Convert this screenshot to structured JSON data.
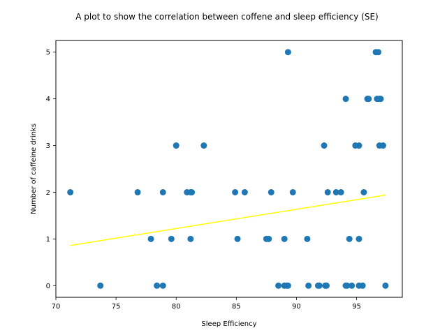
{
  "chart_data": {
    "type": "scatter",
    "title": "A plot to show the correlation between coffene and sleep efficiency (SE)",
    "xlabel": "Sleep Efficiency",
    "ylabel": "Number of caffeine drinks",
    "xlim": [
      70,
      98.8
    ],
    "ylim": [
      -0.25,
      5.25
    ],
    "xticks": [
      70,
      75,
      80,
      85,
      90,
      95
    ],
    "yticks": [
      0,
      1,
      2,
      3,
      4,
      5
    ],
    "grid": false,
    "colors": {
      "points": "#1f77b4",
      "trend": "#ffff00"
    },
    "points": [
      {
        "x": 71.2,
        "y": 2
      },
      {
        "x": 73.7,
        "y": 0
      },
      {
        "x": 76.8,
        "y": 2
      },
      {
        "x": 77.9,
        "y": 1
      },
      {
        "x": 78.4,
        "y": 0
      },
      {
        "x": 78.9,
        "y": 2
      },
      {
        "x": 78.9,
        "y": 0
      },
      {
        "x": 79.6,
        "y": 1
      },
      {
        "x": 80.0,
        "y": 3
      },
      {
        "x": 80.9,
        "y": 2
      },
      {
        "x": 81.2,
        "y": 2
      },
      {
        "x": 81.2,
        "y": 1
      },
      {
        "x": 81.3,
        "y": 2
      },
      {
        "x": 82.3,
        "y": 3
      },
      {
        "x": 84.9,
        "y": 2
      },
      {
        "x": 85.1,
        "y": 1
      },
      {
        "x": 85.7,
        "y": 2
      },
      {
        "x": 87.5,
        "y": 1
      },
      {
        "x": 87.7,
        "y": 1
      },
      {
        "x": 87.9,
        "y": 2
      },
      {
        "x": 88.5,
        "y": 0
      },
      {
        "x": 89.0,
        "y": 1
      },
      {
        "x": 89.0,
        "y": 0
      },
      {
        "x": 89.2,
        "y": 0
      },
      {
        "x": 89.3,
        "y": 0
      },
      {
        "x": 89.3,
        "y": 5
      },
      {
        "x": 89.7,
        "y": 2
      },
      {
        "x": 90.9,
        "y": 1
      },
      {
        "x": 91.0,
        "y": 0
      },
      {
        "x": 91.8,
        "y": 0
      },
      {
        "x": 91.9,
        "y": 0
      },
      {
        "x": 92.3,
        "y": 3
      },
      {
        "x": 92.4,
        "y": 0
      },
      {
        "x": 92.5,
        "y": 0
      },
      {
        "x": 92.6,
        "y": 2
      },
      {
        "x": 93.3,
        "y": 2
      },
      {
        "x": 93.7,
        "y": 2
      },
      {
        "x": 94.1,
        "y": 4
      },
      {
        "x": 94.1,
        "y": 0
      },
      {
        "x": 94.2,
        "y": 0
      },
      {
        "x": 94.4,
        "y": 1
      },
      {
        "x": 94.6,
        "y": 0
      },
      {
        "x": 94.9,
        "y": 3
      },
      {
        "x": 95.2,
        "y": 3
      },
      {
        "x": 95.2,
        "y": 1
      },
      {
        "x": 95.2,
        "y": 0
      },
      {
        "x": 95.5,
        "y": 0
      },
      {
        "x": 95.6,
        "y": 2
      },
      {
        "x": 95.9,
        "y": 4
      },
      {
        "x": 96.0,
        "y": 4
      },
      {
        "x": 96.6,
        "y": 5
      },
      {
        "x": 96.8,
        "y": 5
      },
      {
        "x": 96.7,
        "y": 4
      },
      {
        "x": 96.9,
        "y": 4
      },
      {
        "x": 96.9,
        "y": 3
      },
      {
        "x": 97.0,
        "y": 4
      },
      {
        "x": 97.2,
        "y": 3
      },
      {
        "x": 97.4,
        "y": 0
      }
    ],
    "trend_line": {
      "x": [
        71.2,
        97.4
      ],
      "y": [
        0.86,
        1.94
      ]
    }
  }
}
